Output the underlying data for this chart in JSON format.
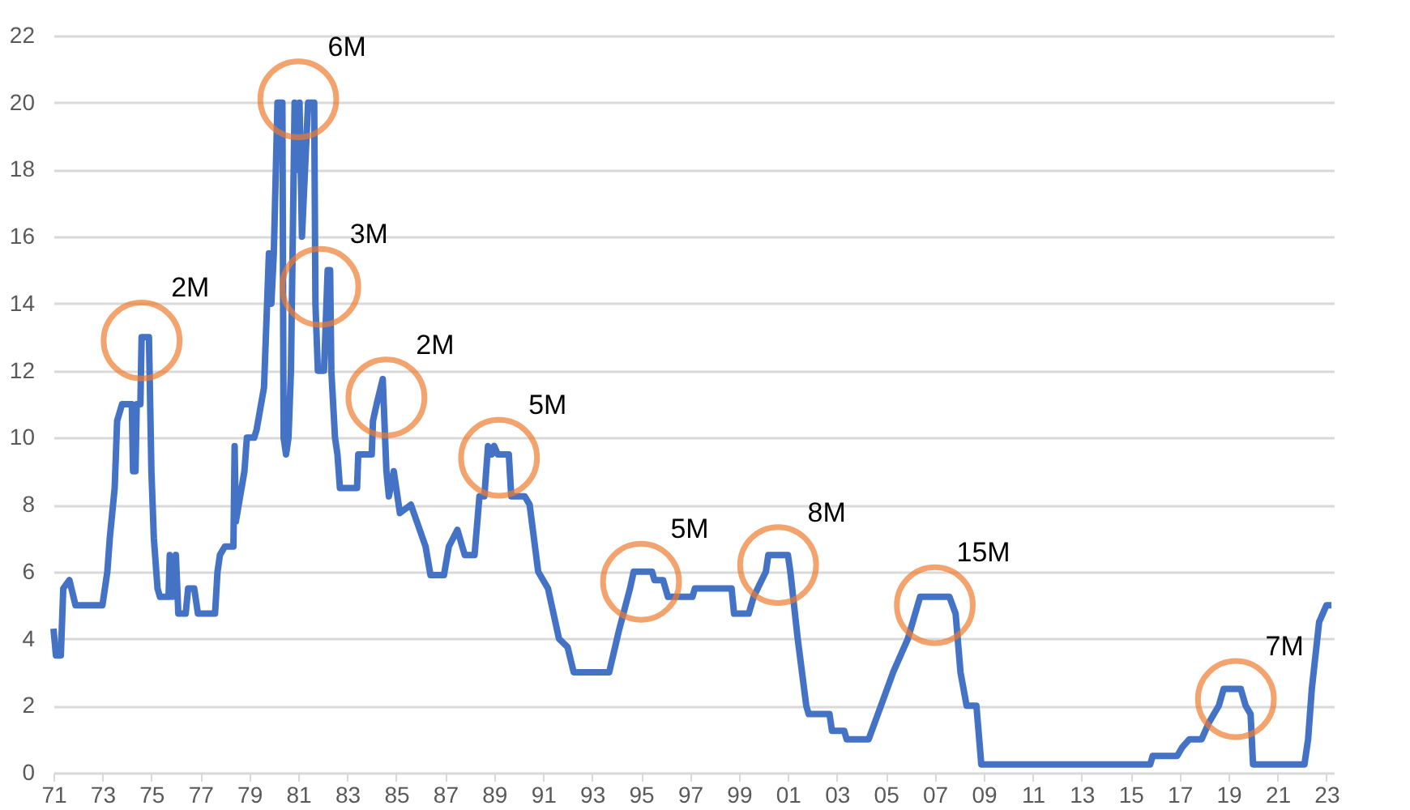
{
  "chart_data": {
    "type": "line",
    "x": [
      1971.0,
      1971.1,
      1971.3,
      1971.4,
      1971.65,
      1971.9,
      1973.0,
      1973.2,
      1973.3,
      1973.5,
      1973.6,
      1973.8,
      1974.2,
      1974.25,
      1974.35,
      1974.4,
      1974.55,
      1974.6,
      1974.9,
      1975.0,
      1975.1,
      1975.25,
      1975.35,
      1975.7,
      1975.75,
      1975.85,
      1976.0,
      1976.1,
      1976.4,
      1976.5,
      1976.75,
      1976.9,
      1977.6,
      1977.7,
      1977.8,
      1978.0,
      1978.35,
      1978.4,
      1978.45,
      1978.8,
      1978.9,
      1979.2,
      1979.3,
      1979.6,
      1979.8,
      1979.9,
      1980.0,
      1980.15,
      1980.35,
      1980.4,
      1980.5,
      1980.6,
      1980.7,
      1980.85,
      1981.0,
      1981.05,
      1981.15,
      1981.4,
      1981.65,
      1981.7,
      1981.8,
      1982.05,
      1982.2,
      1982.3,
      1982.35,
      1982.5,
      1982.6,
      1982.7,
      1983.4,
      1983.45,
      1984.0,
      1984.05,
      1984.2,
      1984.45,
      1984.6,
      1984.7,
      1984.9,
      1985.15,
      1985.6,
      1986.2,
      1986.4,
      1986.95,
      1987.15,
      1987.5,
      1987.8,
      1988.2,
      1988.4,
      1988.6,
      1988.75,
      1988.9,
      1989.0,
      1989.15,
      1989.6,
      1989.7,
      1990.25,
      1990.45,
      1990.8,
      1991.2,
      1991.65,
      1992.0,
      1992.25,
      1993.7,
      1994.1,
      1994.55,
      1994.7,
      1995.45,
      1995.55,
      1995.9,
      1996.1,
      1997.1,
      1997.2,
      1998.7,
      1998.8,
      1999.4,
      1999.6,
      2000.1,
      2000.2,
      2001.0,
      2001.1,
      2001.4,
      2001.75,
      2001.85,
      2002.7,
      2002.8,
      2003.3,
      2003.4,
      2004.3,
      2004.8,
      2005.3,
      2005.9,
      2006.4,
      2007.6,
      2007.85,
      2008.05,
      2008.3,
      2008.7,
      2008.9,
      2015.8,
      2015.9,
      2016.9,
      2017.1,
      2017.4,
      2017.9,
      2018.2,
      2018.6,
      2018.8,
      2019.5,
      2019.7,
      2019.9,
      2020.0,
      2022.1,
      2022.25,
      2022.4,
      2022.7,
      2023.0,
      2023.2
    ],
    "series": [
      {
        "color": "#4472c4",
        "values": [
          4.3,
          3.5,
          3.5,
          5.5,
          5.75,
          5.0,
          5.0,
          6.0,
          7.0,
          8.5,
          10.5,
          11.0,
          11.0,
          9.0,
          9.0,
          11.0,
          11.0,
          13.0,
          13.0,
          9.0,
          7.0,
          5.5,
          5.25,
          5.25,
          6.5,
          5.25,
          6.5,
          4.75,
          4.75,
          5.5,
          5.5,
          4.75,
          4.75,
          6.0,
          6.5,
          6.75,
          6.75,
          9.75,
          7.5,
          9.0,
          10.0,
          10.0,
          10.25,
          11.5,
          15.5,
          14.0,
          15.5,
          20.0,
          20.0,
          10.0,
          9.5,
          10.0,
          12.0,
          20.0,
          18.0,
          20.0,
          16.0,
          20.0,
          20.0,
          14.0,
          12.0,
          12.0,
          15.0,
          15.0,
          12.0,
          10.0,
          9.5,
          8.5,
          8.5,
          9.5,
          9.5,
          10.5,
          11.0,
          11.75,
          9.0,
          8.25,
          9.0,
          7.75,
          8.0,
          6.75,
          5.9,
          5.9,
          6.75,
          7.25,
          6.5,
          6.5,
          8.25,
          8.25,
          9.75,
          9.5,
          9.75,
          9.5,
          9.5,
          8.25,
          8.25,
          8.0,
          6.0,
          5.5,
          4.0,
          3.75,
          3.0,
          3.0,
          4.25,
          5.5,
          6.0,
          6.0,
          5.75,
          5.75,
          5.25,
          5.25,
          5.5,
          5.5,
          4.75,
          4.75,
          5.25,
          6.0,
          6.5,
          6.5,
          6.0,
          4.0,
          2.0,
          1.75,
          1.75,
          1.25,
          1.25,
          1.0,
          1.0,
          2.0,
          3.0,
          4.0,
          5.25,
          5.25,
          4.75,
          3.0,
          2.0,
          2.0,
          0.25,
          0.25,
          0.5,
          0.5,
          0.75,
          1.0,
          1.0,
          1.5,
          2.0,
          2.5,
          2.5,
          2.0,
          1.75,
          0.25,
          0.25,
          1.0,
          2.5,
          4.5,
          5.0,
          5.0
        ]
      }
    ],
    "xlim": [
      1971,
      2023.3
    ],
    "xticks": [
      {
        "value": 1971,
        "label": "71"
      },
      {
        "value": 1973,
        "label": "73"
      },
      {
        "value": 1975,
        "label": "75"
      },
      {
        "value": 1977,
        "label": "77"
      },
      {
        "value": 1979,
        "label": "79"
      },
      {
        "value": 1981,
        "label": "81"
      },
      {
        "value": 1983,
        "label": "83"
      },
      {
        "value": 1985,
        "label": "85"
      },
      {
        "value": 1987,
        "label": "87"
      },
      {
        "value": 1989,
        "label": "89"
      },
      {
        "value": 1991,
        "label": "91"
      },
      {
        "value": 1993,
        "label": "93"
      },
      {
        "value": 1995,
        "label": "95"
      },
      {
        "value": 1997,
        "label": "97"
      },
      {
        "value": 1999,
        "label": "99"
      },
      {
        "value": 2001,
        "label": "01"
      },
      {
        "value": 2003,
        "label": "03"
      },
      {
        "value": 2005,
        "label": "05"
      },
      {
        "value": 2007,
        "label": "07"
      },
      {
        "value": 2009,
        "label": "09"
      },
      {
        "value": 2011,
        "label": "11"
      },
      {
        "value": 2013,
        "label": "13"
      },
      {
        "value": 2015,
        "label": "15"
      },
      {
        "value": 2017,
        "label": "17"
      },
      {
        "value": 2019,
        "label": "19"
      },
      {
        "value": 2021,
        "label": "21"
      },
      {
        "value": 2023,
        "label": "23"
      }
    ],
    "ylim": [
      0,
      22
    ],
    "yticks": [
      0,
      2,
      4,
      6,
      8,
      10,
      12,
      14,
      16,
      18,
      20,
      22
    ],
    "grid": "y",
    "marker": "none",
    "line_style": "solid",
    "annotations": [
      {
        "text": "2M",
        "x": 1974.6,
        "y": 12.9
      },
      {
        "text": "6M",
        "x": 1981.0,
        "y": 20.1
      },
      {
        "text": "3M",
        "x": 1981.9,
        "y": 14.5
      },
      {
        "text": "2M",
        "x": 1984.6,
        "y": 11.2
      },
      {
        "text": "5M",
        "x": 1989.2,
        "y": 9.4
      },
      {
        "text": "5M",
        "x": 1995.0,
        "y": 5.7
      },
      {
        "text": "8M",
        "x": 2000.6,
        "y": 6.2
      },
      {
        "text": "15M",
        "x": 2007.0,
        "y": 5.0
      },
      {
        "text": "7M",
        "x": 2019.3,
        "y": 2.2
      }
    ]
  }
}
